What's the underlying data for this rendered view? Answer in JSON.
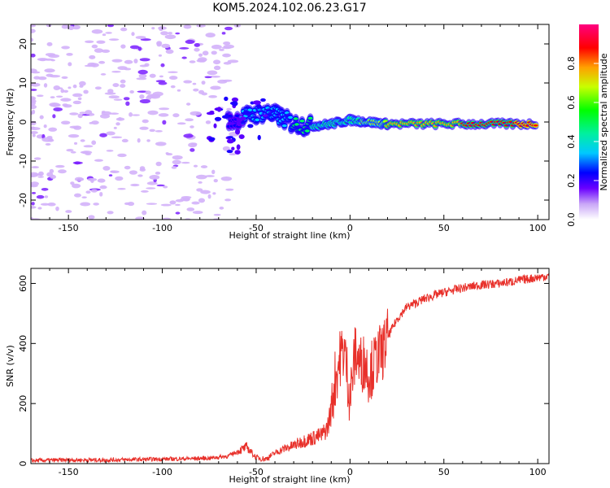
{
  "figure": {
    "title": "KOM5.2024.102.06.23.G17"
  },
  "chart_data": [
    {
      "type": "heatmap",
      "title": "",
      "xlabel": "Height of straight line (km)",
      "ylabel": "Frequency (Hz)",
      "xlim": [
        -170,
        106
      ],
      "ylim": [
        -25,
        25
      ],
      "xticks": [
        -150,
        -100,
        -50,
        0,
        50,
        100
      ],
      "yticks": [
        -20,
        -10,
        0,
        10,
        20
      ],
      "colorbar": {
        "label": "Normalized spectral amplitude",
        "range": [
          0,
          1
        ],
        "ticks": [
          0.0,
          0.2,
          0.4,
          0.6,
          0.8
        ]
      },
      "ridge": [
        {
          "x": -65,
          "y": 0.0,
          "amp": 0.35
        },
        {
          "x": -55,
          "y": 1.5,
          "amp": 0.45
        },
        {
          "x": -45,
          "y": 2.5,
          "amp": 0.45
        },
        {
          "x": -38,
          "y": 1.5,
          "amp": 0.45
        },
        {
          "x": -30,
          "y": -0.5,
          "amp": 0.55
        },
        {
          "x": -20,
          "y": -1.0,
          "amp": 0.6
        },
        {
          "x": -10,
          "y": -0.5,
          "amp": 0.6
        },
        {
          "x": 0,
          "y": 0.5,
          "amp": 0.65
        },
        {
          "x": 10,
          "y": 0.0,
          "amp": 0.7
        },
        {
          "x": 20,
          "y": -0.5,
          "amp": 0.8
        },
        {
          "x": 40,
          "y": -0.5,
          "amp": 0.85
        },
        {
          "x": 60,
          "y": -0.5,
          "amp": 0.9
        },
        {
          "x": 80,
          "y": -0.5,
          "amp": 0.95
        },
        {
          "x": 100,
          "y": -0.5,
          "amp": 1.0
        }
      ]
    },
    {
      "type": "line",
      "title": "",
      "xlabel": "Height of straight line (km)",
      "ylabel": "SNR (v/v)",
      "xlim": [
        -170,
        106
      ],
      "ylim": [
        0,
        650
      ],
      "xticks": [
        -150,
        -100,
        -50,
        0,
        50,
        100
      ],
      "yticks": [
        0,
        200,
        400,
        600
      ],
      "series": [
        {
          "color": "#e8302a",
          "x": [
            -170,
            -150,
            -130,
            -110,
            -90,
            -75,
            -65,
            -60,
            -55,
            -50,
            -45,
            -40,
            -35,
            -30,
            -25,
            -20,
            -15,
            -12,
            -10,
            -8,
            -5,
            -3,
            0,
            3,
            5,
            8,
            10,
            12,
            15,
            18,
            20,
            25,
            30,
            40,
            50,
            60,
            70,
            80,
            90,
            100,
            106
          ],
          "y": [
            10,
            12,
            12,
            14,
            16,
            18,
            25,
            40,
            55,
            20,
            15,
            35,
            50,
            60,
            75,
            85,
            95,
            120,
            180,
            280,
            360,
            380,
            220,
            380,
            330,
            340,
            300,
            320,
            360,
            380,
            420,
            480,
            520,
            550,
            570,
            585,
            595,
            600,
            610,
            620,
            625
          ]
        }
      ]
    }
  ]
}
